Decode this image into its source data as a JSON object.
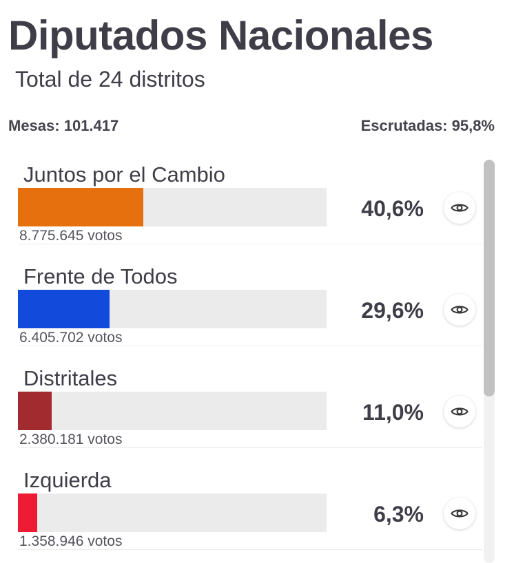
{
  "header": {
    "title": "Diputados Nacionales",
    "subtitle": "Total de 24 distritos"
  },
  "summary": {
    "mesas": "Mesas: 101.417",
    "escrutadas": "Escrutadas: 95,8%"
  },
  "parties": [
    {
      "name": "Juntos por el Cambio",
      "percent": "40,6%",
      "votes": "8.775.645 votos",
      "value": 40.6,
      "color": "#e5700d"
    },
    {
      "name": "Frente de Todos",
      "percent": "29,6%",
      "votes": "6.405.702 votos",
      "value": 29.6,
      "color": "#124bdb"
    },
    {
      "name": "Distritales",
      "percent": "11,0%",
      "votes": "2.380.181 votos",
      "value": 11.0,
      "color": "#a22b2f"
    },
    {
      "name": "Izquierda",
      "percent": "6,3%",
      "votes": "1.358.946 votos",
      "value": 6.3,
      "color": "#ed1b34"
    }
  ]
}
